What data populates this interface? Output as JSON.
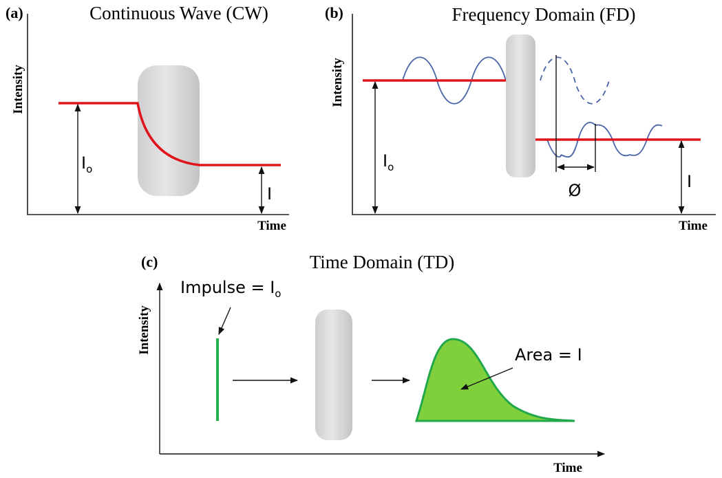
{
  "panels": [
    {
      "label": "(a)",
      "title": "Continuous Wave (CW)",
      "y_axis": "Intensity",
      "x_axis": "Time",
      "incident": {
        "base": "I",
        "sub": "o"
      },
      "transmitted": "I"
    },
    {
      "label": "(b)",
      "title": "Frequency Domain (FD)",
      "y_axis": "Intensity",
      "x_axis": "Time",
      "incident": {
        "base": "I",
        "sub": "o"
      },
      "transmitted": "I",
      "phase": "Ø"
    },
    {
      "label": "(c)",
      "title": "Time Domain (TD)",
      "y_axis": "Intensity",
      "x_axis": "Time",
      "impulse": {
        "base": "Impulse = I",
        "sub": "o"
      },
      "area": "Area = I"
    }
  ]
}
